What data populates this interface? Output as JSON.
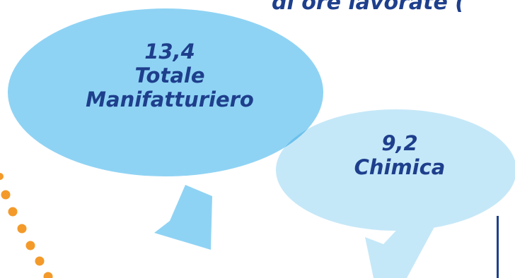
{
  "title_fragment": "di ore lavorate (",
  "bubbles": [
    {
      "value": "13,4",
      "label_line1": "Totale",
      "label_line2": "Manifatturiero",
      "color": "#8fd3f4"
    },
    {
      "value": "9,2",
      "label_line1": "Chimica",
      "color": "#c5e8f8"
    }
  ],
  "colors": {
    "text": "#1e3f8c",
    "dots": "#f39a2a",
    "overlap": "#6cc0ec"
  }
}
